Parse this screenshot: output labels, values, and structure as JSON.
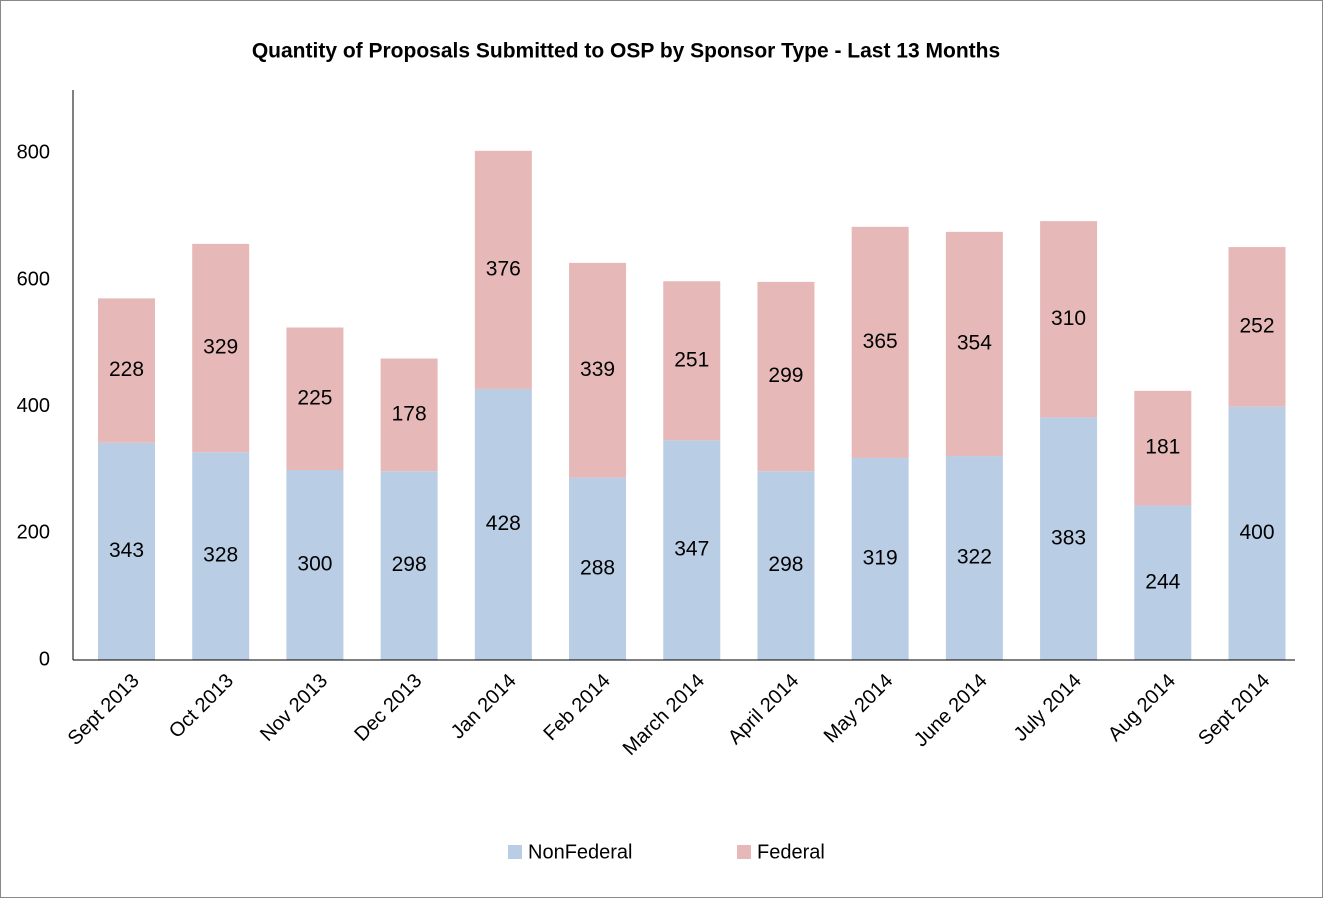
{
  "chart_data": {
    "type": "stacked_bar",
    "title": "Quantity of Proposals Submitted to OSP by Sponsor Type - Last 13 Months",
    "categories": [
      "Sept 2013",
      "Oct 2013",
      "Nov 2013",
      "Dec 2013",
      "Jan 2014",
      "Feb 2014",
      "March 2014",
      "April 2014",
      "May 2014",
      "June 2014",
      "July 2014",
      "Aug 2014",
      "Sept 2014"
    ],
    "series": [
      {
        "name": "NonFederal",
        "color": "#b9cde5",
        "values": [
          343,
          328,
          300,
          298,
          428,
          288,
          347,
          298,
          319,
          322,
          383,
          244,
          400
        ]
      },
      {
        "name": "Federal",
        "color": "#e6b9b8",
        "values": [
          228,
          329,
          225,
          178,
          376,
          339,
          251,
          299,
          365,
          354,
          310,
          181,
          252
        ]
      }
    ],
    "ylim": [
      0,
      900
    ],
    "yticks": [
      0,
      200,
      400,
      600,
      800
    ],
    "grid": false,
    "legend": "bottom"
  }
}
